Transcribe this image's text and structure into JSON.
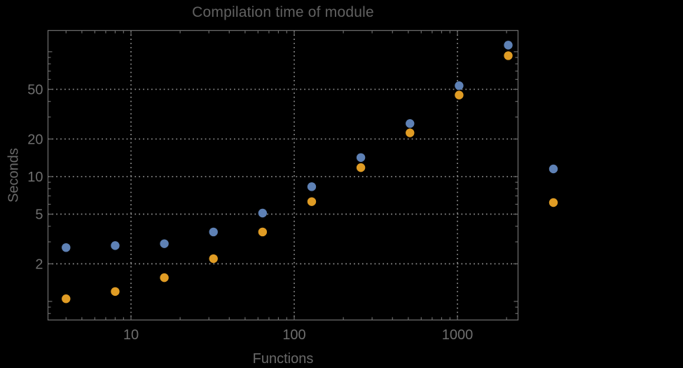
{
  "canvas": {
    "background": "#000000"
  },
  "chart_data": {
    "type": "scatter",
    "title": "Compilation time of module",
    "xlabel": "Functions",
    "ylabel": "Seconds",
    "x_scale": "log",
    "y_scale": "log",
    "xlim": [
      3.1,
      2351
    ],
    "ylim": [
      0.71,
      148
    ],
    "grid": "dotted",
    "x_gridlines": [
      10,
      100,
      1000
    ],
    "y_gridlines": [
      2,
      5,
      10,
      20,
      50
    ],
    "x_tick_labels": [
      "10",
      "100",
      "1000"
    ],
    "y_tick_labels": [
      "2",
      "5",
      "10",
      "20",
      "50"
    ],
    "x": [
      4,
      8,
      16,
      32,
      64,
      128,
      256,
      512,
      1024,
      2048
    ],
    "series": [
      {
        "name": "series-blue",
        "color": "#5e81b5",
        "values": [
          2.7,
          2.8,
          2.9,
          3.6,
          5.1,
          8.3,
          14.2,
          26.6,
          53.5,
          113
        ]
      },
      {
        "name": "series-orange",
        "color": "#e09c24",
        "values": [
          1.05,
          1.2,
          1.55,
          2.2,
          3.6,
          6.3,
          11.8,
          22.4,
          45,
          93
        ]
      }
    ],
    "legend": {
      "position": "right-outside",
      "labels_visible": false,
      "markers": [
        {
          "name": "legend-marker-blue",
          "color": "#5e81b5"
        },
        {
          "name": "legend-marker-orange",
          "color": "#e09c24"
        }
      ]
    },
    "style": {
      "frame_color": "#696969",
      "grid_color": "#8f8f8f",
      "tick_color": "#6a6a6a",
      "label_color": "#6e6e6e",
      "point_radius": 6.2
    }
  }
}
